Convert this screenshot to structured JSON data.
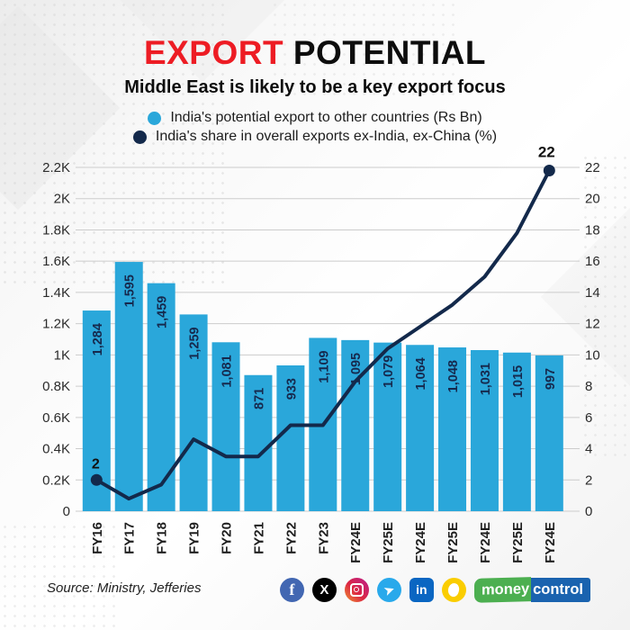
{
  "header": {
    "title_primary": "EXPORT",
    "title_secondary": "POTENTIAL",
    "subtitle": "Middle East is likely to be a key export focus"
  },
  "legend": [
    {
      "label": "India's potential export to other countries (Rs Bn)",
      "color": "#2AA7DA"
    },
    {
      "label": "India's share in overall exports ex-India, ex-China (%)",
      "color": "#13294B"
    }
  ],
  "chart_data": {
    "type": "bar+line combo",
    "categories": [
      "FY16",
      "FY17",
      "FY18",
      "FY19",
      "FY20",
      "FY21",
      "FY22",
      "FY23",
      "FY24E",
      "FY25E",
      "FY24E",
      "FY25E",
      "FY24E",
      "FY25E",
      "FY24E"
    ],
    "series": [
      {
        "name": "India's potential export to other countries (Rs Bn)",
        "type": "bar",
        "color": "#2AA7DA",
        "values": [
          1284,
          1595,
          1459,
          1259,
          1081,
          871,
          933,
          1109,
          1095,
          1079,
          1064,
          1048,
          1031,
          1015,
          997
        ],
        "labels": [
          "1,284",
          "1,595",
          "1,459",
          "1,259",
          "1,081",
          "871",
          "933",
          "1,109",
          "1,095",
          "1,079",
          "1,064",
          "1,048",
          "1,031",
          "1,015",
          "997"
        ]
      },
      {
        "name": "India's share in overall exports ex-India, ex-China (%)",
        "type": "line",
        "color": "#13294B",
        "values": [
          2,
          0.8,
          1.7,
          4.6,
          3.5,
          3.5,
          5.5,
          5.5,
          8.3,
          10.4,
          11.8,
          13.2,
          15,
          17.8,
          21.8
        ],
        "first_point_label": "2",
        "last_point_label": "22"
      }
    ],
    "left_axis": {
      "ticks": [
        "0",
        "0.2K",
        "0.4K",
        "0.6K",
        "0.8K",
        "1K",
        "1.2K",
        "1.4K",
        "1.6K",
        "1.8K",
        "2K",
        "2.2K"
      ],
      "range": [
        0,
        2200
      ]
    },
    "right_axis": {
      "ticks": [
        "0",
        "2",
        "4",
        "6",
        "8",
        "10",
        "12",
        "14",
        "16",
        "18",
        "20",
        "22"
      ],
      "range": [
        0,
        22
      ]
    },
    "grid": true,
    "legend_position": "top",
    "title": "EXPORT POTENTIAL",
    "subtitle": "Middle East is likely to be a key export focus"
  },
  "footer": {
    "source": "Source: Ministry, Jefferies",
    "social": {
      "facebook_glyph": "f",
      "x_glyph": "X",
      "telegram_glyph": "➤",
      "linkedin_glyph": "in"
    },
    "logo": {
      "part1": "money",
      "part2": "control"
    }
  },
  "colors": {
    "accent_red": "#ED1C24",
    "bar_blue": "#2AA7DA",
    "line_navy": "#13294B",
    "grid_grey": "#cccccc",
    "text_dark": "#1d1d1d",
    "facebook": "#4267B2",
    "x": "#000000",
    "telegram": "#29A9EB",
    "linkedin": "#0A66C2",
    "koo": "#FACD00",
    "mc_green": "#4CAF50",
    "mc_blue": "#1A63AF"
  }
}
